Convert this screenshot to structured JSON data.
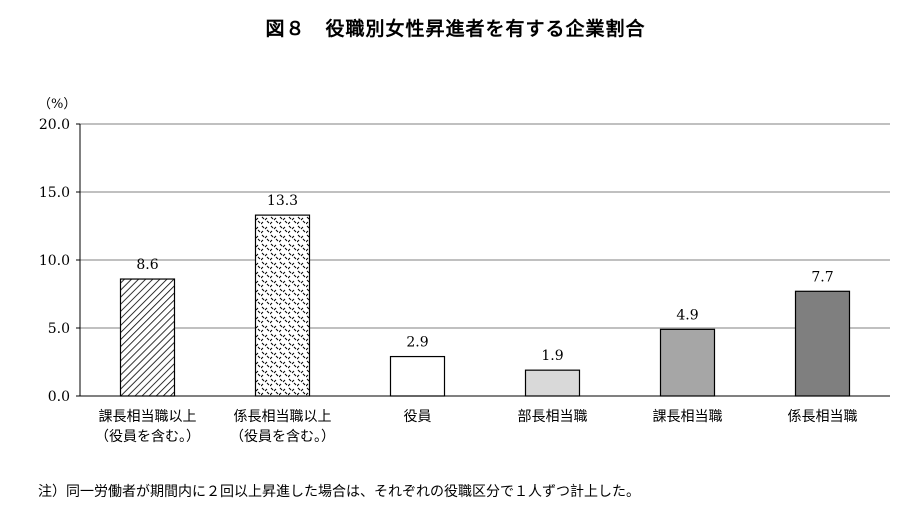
{
  "title": "図８　役職別女性昇進者を有する企業割合",
  "note": "注）同一労働者が期間内に２回以上昇進した場合は、それぞれの役職区分で１人ずつ計上した。",
  "chart_data": {
    "type": "bar",
    "title": "図８　役職別女性昇進者を有する企業割合",
    "ylabel": "（%）",
    "xlabel": "",
    "ylim": [
      0,
      20
    ],
    "yticks": [
      "0.0",
      "5.0",
      "10.0",
      "15.0",
      "20.0"
    ],
    "grid": true,
    "categories": [
      [
        "課長相当職以上",
        "（役員を含む。）"
      ],
      [
        "係長相当職以上",
        "（役員を含む。）"
      ],
      [
        "役員"
      ],
      [
        "部長相当職"
      ],
      [
        "課長相当職"
      ],
      [
        "係長相当職"
      ]
    ],
    "values": [
      8.6,
      13.3,
      2.9,
      1.9,
      4.9,
      7.7
    ],
    "value_labels": [
      "8.6",
      "13.3",
      "2.9",
      "1.9",
      "4.9",
      "7.7"
    ],
    "fills": [
      "hatch",
      "dots",
      "#ffffff",
      "#d9d9d9",
      "#a6a6a6",
      "#7f7f7f"
    ]
  }
}
